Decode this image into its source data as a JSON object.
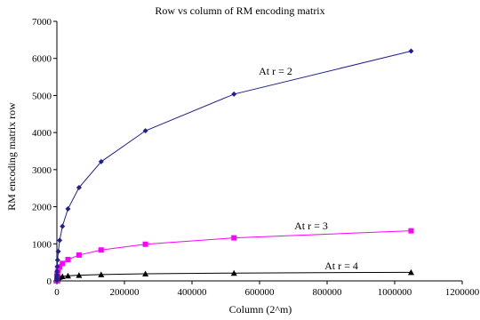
{
  "chart_data": {
    "type": "line",
    "title": "Row vs column of RM encoding matrix",
    "xlabel": "Column (2^m)",
    "ylabel": "RM encoding matrix row",
    "xlim": [
      0,
      1200000
    ],
    "ylim": [
      0,
      7000
    ],
    "xticks": [
      0,
      200000,
      400000,
      600000,
      800000,
      1000000,
      1200000
    ],
    "yticks": [
      0,
      1000,
      2000,
      3000,
      4000,
      5000,
      6000,
      7000
    ],
    "grid": false,
    "legend": "none",
    "series": [
      {
        "label": "At r = 2",
        "color": "#000000",
        "marker": "triangle",
        "x": [
          4,
          8,
          16,
          32,
          64,
          128,
          256,
          512,
          1024,
          2048,
          4096,
          8192,
          16384,
          32768,
          65536,
          131072,
          262144,
          524288,
          1048576
        ],
        "y": [
          7,
          11,
          16,
          22,
          29,
          37,
          46,
          56,
          67,
          79,
          92,
          106,
          121,
          137,
          154,
          172,
          191,
          211,
          232
        ]
      },
      {
        "label": "At r = 3",
        "color": "#ff00ff",
        "marker": "square",
        "x": [
          8,
          16,
          32,
          64,
          128,
          256,
          512,
          1024,
          2048,
          4096,
          8192,
          16384,
          32768,
          65536,
          131072,
          262144,
          524288,
          1048576
        ],
        "y": [
          8,
          15,
          26,
          42,
          64,
          93,
          130,
          176,
          232,
          299,
          378,
          470,
          576,
          697,
          834,
          988,
          1160,
          1351
        ]
      },
      {
        "label": "At r = 4",
        "color": "#1f1f8f",
        "marker": "diamond",
        "x": [
          16,
          32,
          64,
          128,
          256,
          512,
          1024,
          2048,
          4096,
          8192,
          16384,
          32768,
          65536,
          131072,
          262144,
          524288,
          1048576
        ],
        "y": [
          16,
          31,
          57,
          99,
          163,
          256,
          386,
          562,
          794,
          1093,
          1471,
          1941,
          2517,
          3214,
          4048,
          5036,
          6196
        ]
      }
    ]
  }
}
